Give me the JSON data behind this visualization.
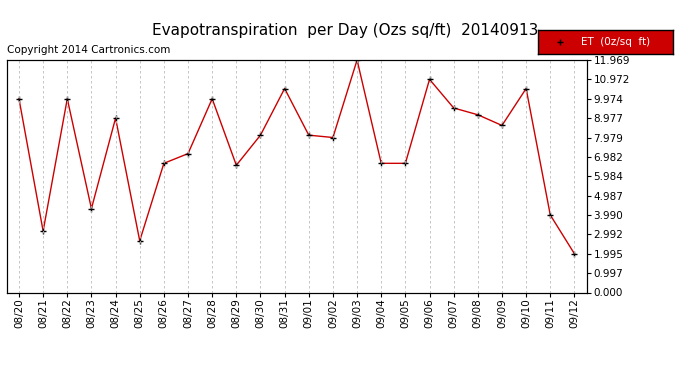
{
  "title": "Evapotranspiration  per Day (Ozs sq/ft)  20140913",
  "copyright": "Copyright 2014 Cartronics.com",
  "legend_label": "ET  (0z/sq  ft)",
  "x_labels": [
    "08/20",
    "08/21",
    "08/22",
    "08/23",
    "08/24",
    "08/25",
    "08/26",
    "08/27",
    "08/28",
    "08/29",
    "08/30",
    "08/31",
    "09/01",
    "09/02",
    "09/03",
    "09/04",
    "09/05",
    "09/06",
    "09/07",
    "09/08",
    "09/09",
    "09/10",
    "09/11",
    "09/12"
  ],
  "y_values": [
    9.974,
    3.162,
    9.974,
    4.318,
    8.977,
    2.66,
    6.65,
    7.15,
    9.974,
    6.55,
    8.1,
    10.5,
    8.1,
    7.979,
    11.969,
    6.65,
    6.65,
    10.972,
    9.5,
    9.15,
    8.6,
    10.5,
    3.99,
    1.995
  ],
  "line_color": "#cc0000",
  "marker_color": "#000000",
  "bg_color": "#ffffff",
  "grid_color": "#bbbbbb",
  "legend_bg": "#cc0000",
  "legend_text_color": "#ffffff",
  "ylim_min": 0.0,
  "ylim_max": 11.969,
  "yticks": [
    0.0,
    0.997,
    1.995,
    2.992,
    3.99,
    4.987,
    5.984,
    6.982,
    7.979,
    8.977,
    9.974,
    10.972,
    11.969
  ],
  "title_fontsize": 11,
  "tick_fontsize": 7.5,
  "copyright_fontsize": 7.5
}
